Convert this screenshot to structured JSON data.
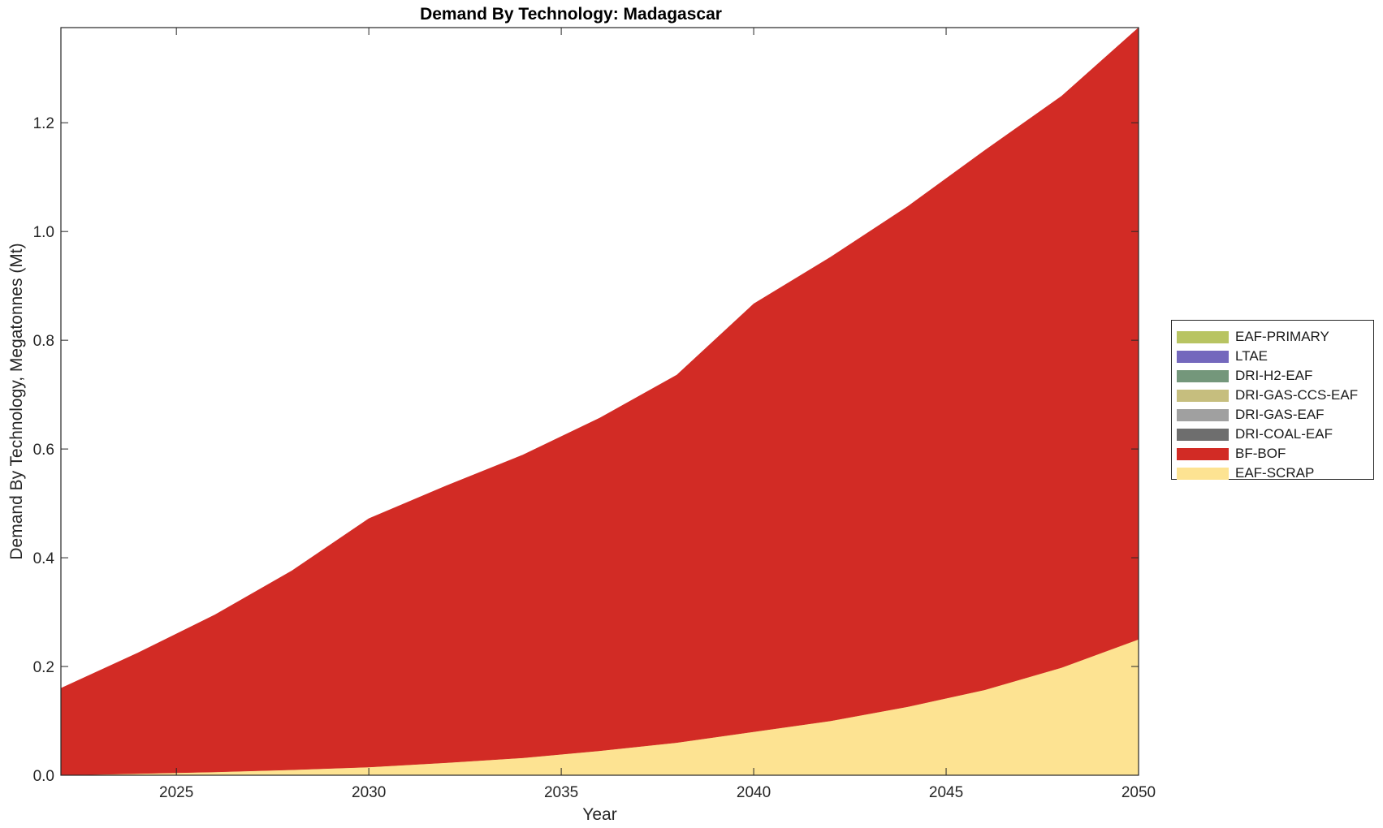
{
  "chart_data": {
    "type": "area",
    "title": "Demand By Technology: Madagascar",
    "xlabel": "Year",
    "ylabel": "Demand By Technology, Megatonnes (Mt)",
    "xlim": [
      2022,
      2050
    ],
    "ylim": [
      0,
      1.375
    ],
    "xticks": [
      2025,
      2030,
      2035,
      2040,
      2045,
      2050
    ],
    "yticks": [
      0.0,
      0.2,
      0.4,
      0.6,
      0.8,
      1.0,
      1.2
    ],
    "ytick_labels": [
      "0.0",
      "0.2",
      "0.4",
      "0.6",
      "0.8",
      "1.0",
      "1.2"
    ],
    "grid": false,
    "legend_position": "right",
    "stacked": true,
    "x": [
      2022,
      2024,
      2026,
      2028,
      2030,
      2032,
      2034,
      2036,
      2038,
      2040,
      2042,
      2044,
      2046,
      2048,
      2050
    ],
    "series": [
      {
        "name": "EAF-SCRAP",
        "color": "#FDE392",
        "values": [
          0.0,
          0.003,
          0.006,
          0.01,
          0.015,
          0.023,
          0.032,
          0.045,
          0.06,
          0.08,
          0.1,
          0.126,
          0.157,
          0.198,
          0.25
        ]
      },
      {
        "name": "BF-BOF",
        "color": "#D22B25",
        "values": [
          0.16,
          0.222,
          0.289,
          0.366,
          0.457,
          0.509,
          0.557,
          0.612,
          0.676,
          0.787,
          0.853,
          0.92,
          0.992,
          1.051,
          1.125
        ]
      },
      {
        "name": "DRI-COAL-EAF",
        "color": "#6E6E6E",
        "values": [
          0,
          0,
          0,
          0,
          0,
          0,
          0,
          0,
          0,
          0,
          0,
          0,
          0,
          0,
          0
        ]
      },
      {
        "name": "DRI-GAS-EAF",
        "color": "#A0A0A0",
        "values": [
          0,
          0,
          0,
          0,
          0,
          0,
          0,
          0,
          0,
          0,
          0,
          0,
          0,
          0,
          0
        ]
      },
      {
        "name": "DRI-GAS-CCS-EAF",
        "color": "#C6BE7E",
        "values": [
          0,
          0,
          0,
          0,
          0,
          0,
          0,
          0,
          0,
          0,
          0,
          0,
          0,
          0,
          0
        ]
      },
      {
        "name": "DRI-H2-EAF",
        "color": "#74977B",
        "values": [
          0,
          0,
          0,
          0,
          0,
          0,
          0,
          0,
          0,
          0,
          0,
          0,
          0,
          0,
          0
        ]
      },
      {
        "name": "LTAE",
        "color": "#7468BD",
        "values": [
          0,
          0,
          0,
          0,
          0,
          0,
          0,
          0,
          0,
          0,
          0,
          0,
          0,
          0,
          0
        ]
      },
      {
        "name": "EAF-PRIMARY",
        "color": "#B8C462",
        "values": [
          0,
          0,
          0,
          0,
          0,
          0,
          0,
          0,
          0,
          0,
          0,
          0,
          0,
          0,
          0
        ]
      }
    ],
    "legend_order": [
      "EAF-PRIMARY",
      "LTAE",
      "DRI-H2-EAF",
      "DRI-GAS-CCS-EAF",
      "DRI-GAS-EAF",
      "DRI-COAL-EAF",
      "BF-BOF",
      "EAF-SCRAP"
    ]
  }
}
